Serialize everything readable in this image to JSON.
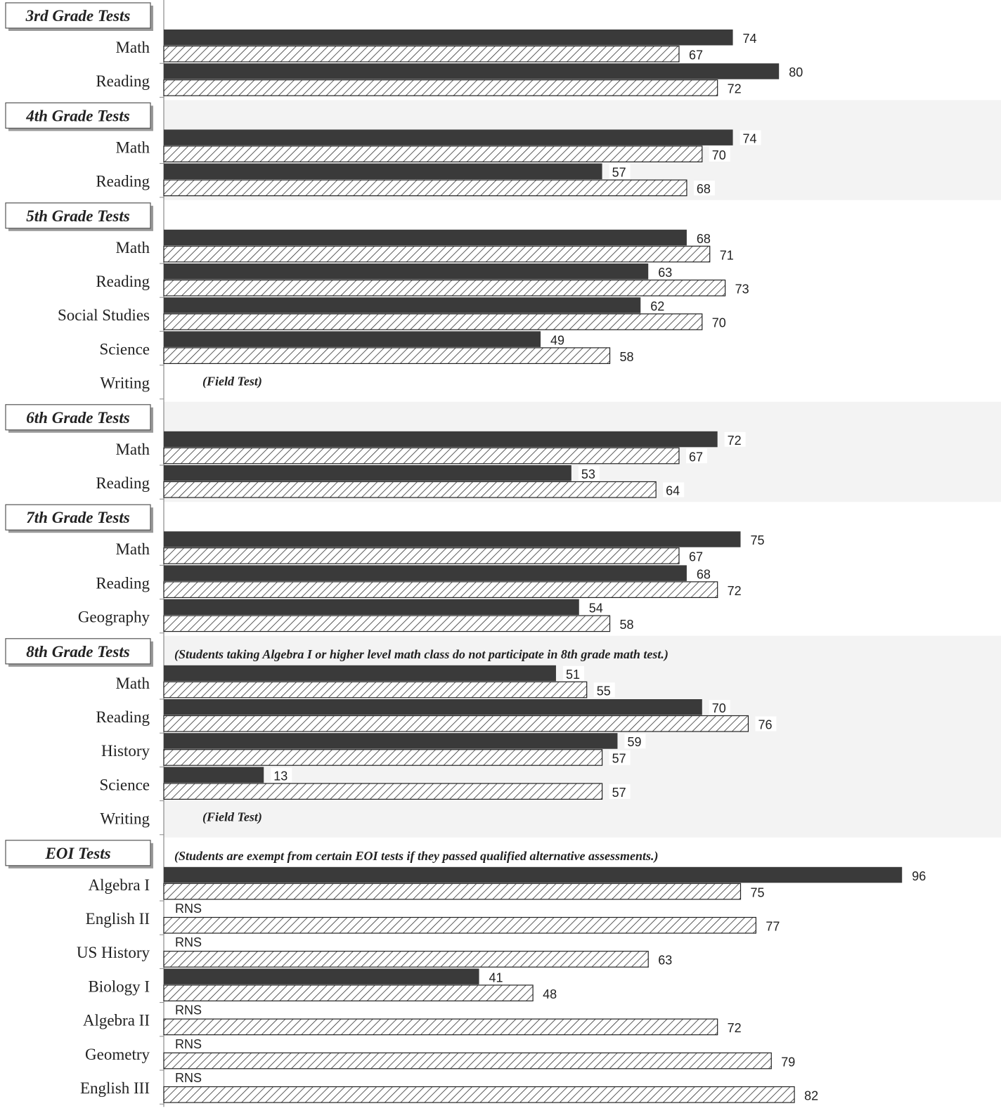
{
  "chart_data": {
    "type": "bar",
    "orientation": "horizontal",
    "series_style": [
      "solid-dark",
      "hatched"
    ],
    "groups": [
      {
        "title": "3rd Grade Tests",
        "note": "",
        "rows": [
          {
            "label": "Math",
            "values": [
              74,
              67
            ],
            "text": ""
          },
          {
            "label": "Reading",
            "values": [
              80,
              72
            ],
            "text": ""
          }
        ]
      },
      {
        "title": "4th Grade Tests",
        "note": "",
        "rows": [
          {
            "label": "Math",
            "values": [
              74,
              70
            ],
            "text": ""
          },
          {
            "label": "Reading",
            "values": [
              57,
              68
            ],
            "text": ""
          }
        ]
      },
      {
        "title": "5th Grade Tests",
        "note": "",
        "rows": [
          {
            "label": "Math",
            "values": [
              68,
              71
            ],
            "text": ""
          },
          {
            "label": "Reading",
            "values": [
              63,
              73
            ],
            "text": ""
          },
          {
            "label": "Social Studies",
            "values": [
              62,
              70
            ],
            "text": ""
          },
          {
            "label": "Science",
            "values": [
              49,
              58
            ],
            "text": ""
          },
          {
            "label": "Writing",
            "values": [
              null,
              null
            ],
            "text": "(Field Test)"
          }
        ]
      },
      {
        "title": "6th Grade Tests",
        "note": "",
        "rows": [
          {
            "label": "Math",
            "values": [
              72,
              67
            ],
            "text": ""
          },
          {
            "label": "Reading",
            "values": [
              53,
              64
            ],
            "text": ""
          }
        ]
      },
      {
        "title": "7th Grade Tests",
        "note": "",
        "rows": [
          {
            "label": "Math",
            "values": [
              75,
              67
            ],
            "text": ""
          },
          {
            "label": "Reading",
            "values": [
              68,
              72
            ],
            "text": ""
          },
          {
            "label": "Geography",
            "values": [
              54,
              58
            ],
            "text": ""
          }
        ]
      },
      {
        "title": "8th Grade Tests",
        "note": "(Students taking Algebra I or higher level math class do not participate in 8th grade math test.)",
        "rows": [
          {
            "label": "Math",
            "values": [
              51,
              55
            ],
            "text": ""
          },
          {
            "label": "Reading",
            "values": [
              70,
              76
            ],
            "text": ""
          },
          {
            "label": "History",
            "values": [
              59,
              57
            ],
            "text": ""
          },
          {
            "label": "Science",
            "values": [
              13,
              57
            ],
            "text": ""
          },
          {
            "label": "Writing",
            "values": [
              null,
              null
            ],
            "text": "(Field Test)"
          }
        ]
      },
      {
        "title": "EOI Tests",
        "note": "(Students are exempt from certain EOI tests if they passed qualified alternative assessments.)",
        "rows": [
          {
            "label": "Algebra I",
            "values": [
              96,
              75
            ],
            "text": ""
          },
          {
            "label": "English II",
            "values": [
              "RNS",
              77
            ],
            "text": ""
          },
          {
            "label": "US History",
            "values": [
              "RNS",
              63
            ],
            "text": ""
          },
          {
            "label": "Biology I",
            "values": [
              41,
              48
            ],
            "text": ""
          },
          {
            "label": "Algebra II",
            "values": [
              "RNS",
              72
            ],
            "text": ""
          },
          {
            "label": "Geometry",
            "values": [
              "RNS",
              79
            ],
            "text": ""
          },
          {
            "label": "English III",
            "values": [
              "RNS",
              82
            ],
            "text": ""
          }
        ]
      }
    ]
  }
}
